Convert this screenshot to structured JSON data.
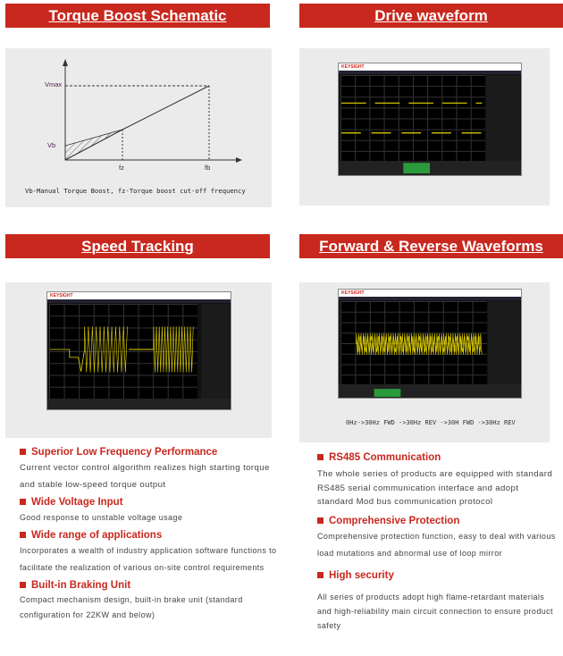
{
  "headers": {
    "torque": "Torque Boost Schematic",
    "drive": "Drive waveform",
    "speed": "Speed Tracking",
    "fwdrev": "Forward & Reverse Waveforms"
  },
  "schematic": {
    "vmax": "Vmax",
    "vb": "Vb",
    "fz": "fz",
    "fb": "fb",
    "caption": "Vb-Manual Torque Boost, fz-Torque boost cut-off frequency"
  },
  "scope_logo": "KEYSIGHT",
  "fwdrev_caption": "0Hz->30Hz FWD ->30Hz REV ->30H  FWD ->30Hz REV",
  "left_features": [
    {
      "title": "Superior Low Frequency Performance",
      "text": "Current vector control algorithm realizes high starting torque and stable low-speed torque output"
    },
    {
      "title": "Wide Voltage Input",
      "text": "Good response to unstable voltage usage"
    },
    {
      "title": "Wide range of applications",
      "text": "Incorporates a wealth of industry application software functions to facilitate the realization of various on-site control requirements"
    },
    {
      "title": "Built-in Braking Unit",
      "text": "Compact mechanism design, built-in brake unit (standard configuration for 22KW and below)"
    }
  ],
  "right_features": [
    {
      "title": "RS485 Communication",
      "text": "The whole series of products are equipped with standard RS485 serial communication interface and adopt standard Mod bus communication protocol"
    },
    {
      "title": "Comprehensive Protection",
      "text": "Comprehensive protection function, easy to deal with various load mutations and abnormal use of loop mirror"
    },
    {
      "title": "High security",
      "text": "All series of products adopt high flame-retardant materials and high-reliability main circuit connection to ensure product safety"
    }
  ],
  "colors": {
    "accent": "#c8281e",
    "trace": "#e8d800"
  }
}
